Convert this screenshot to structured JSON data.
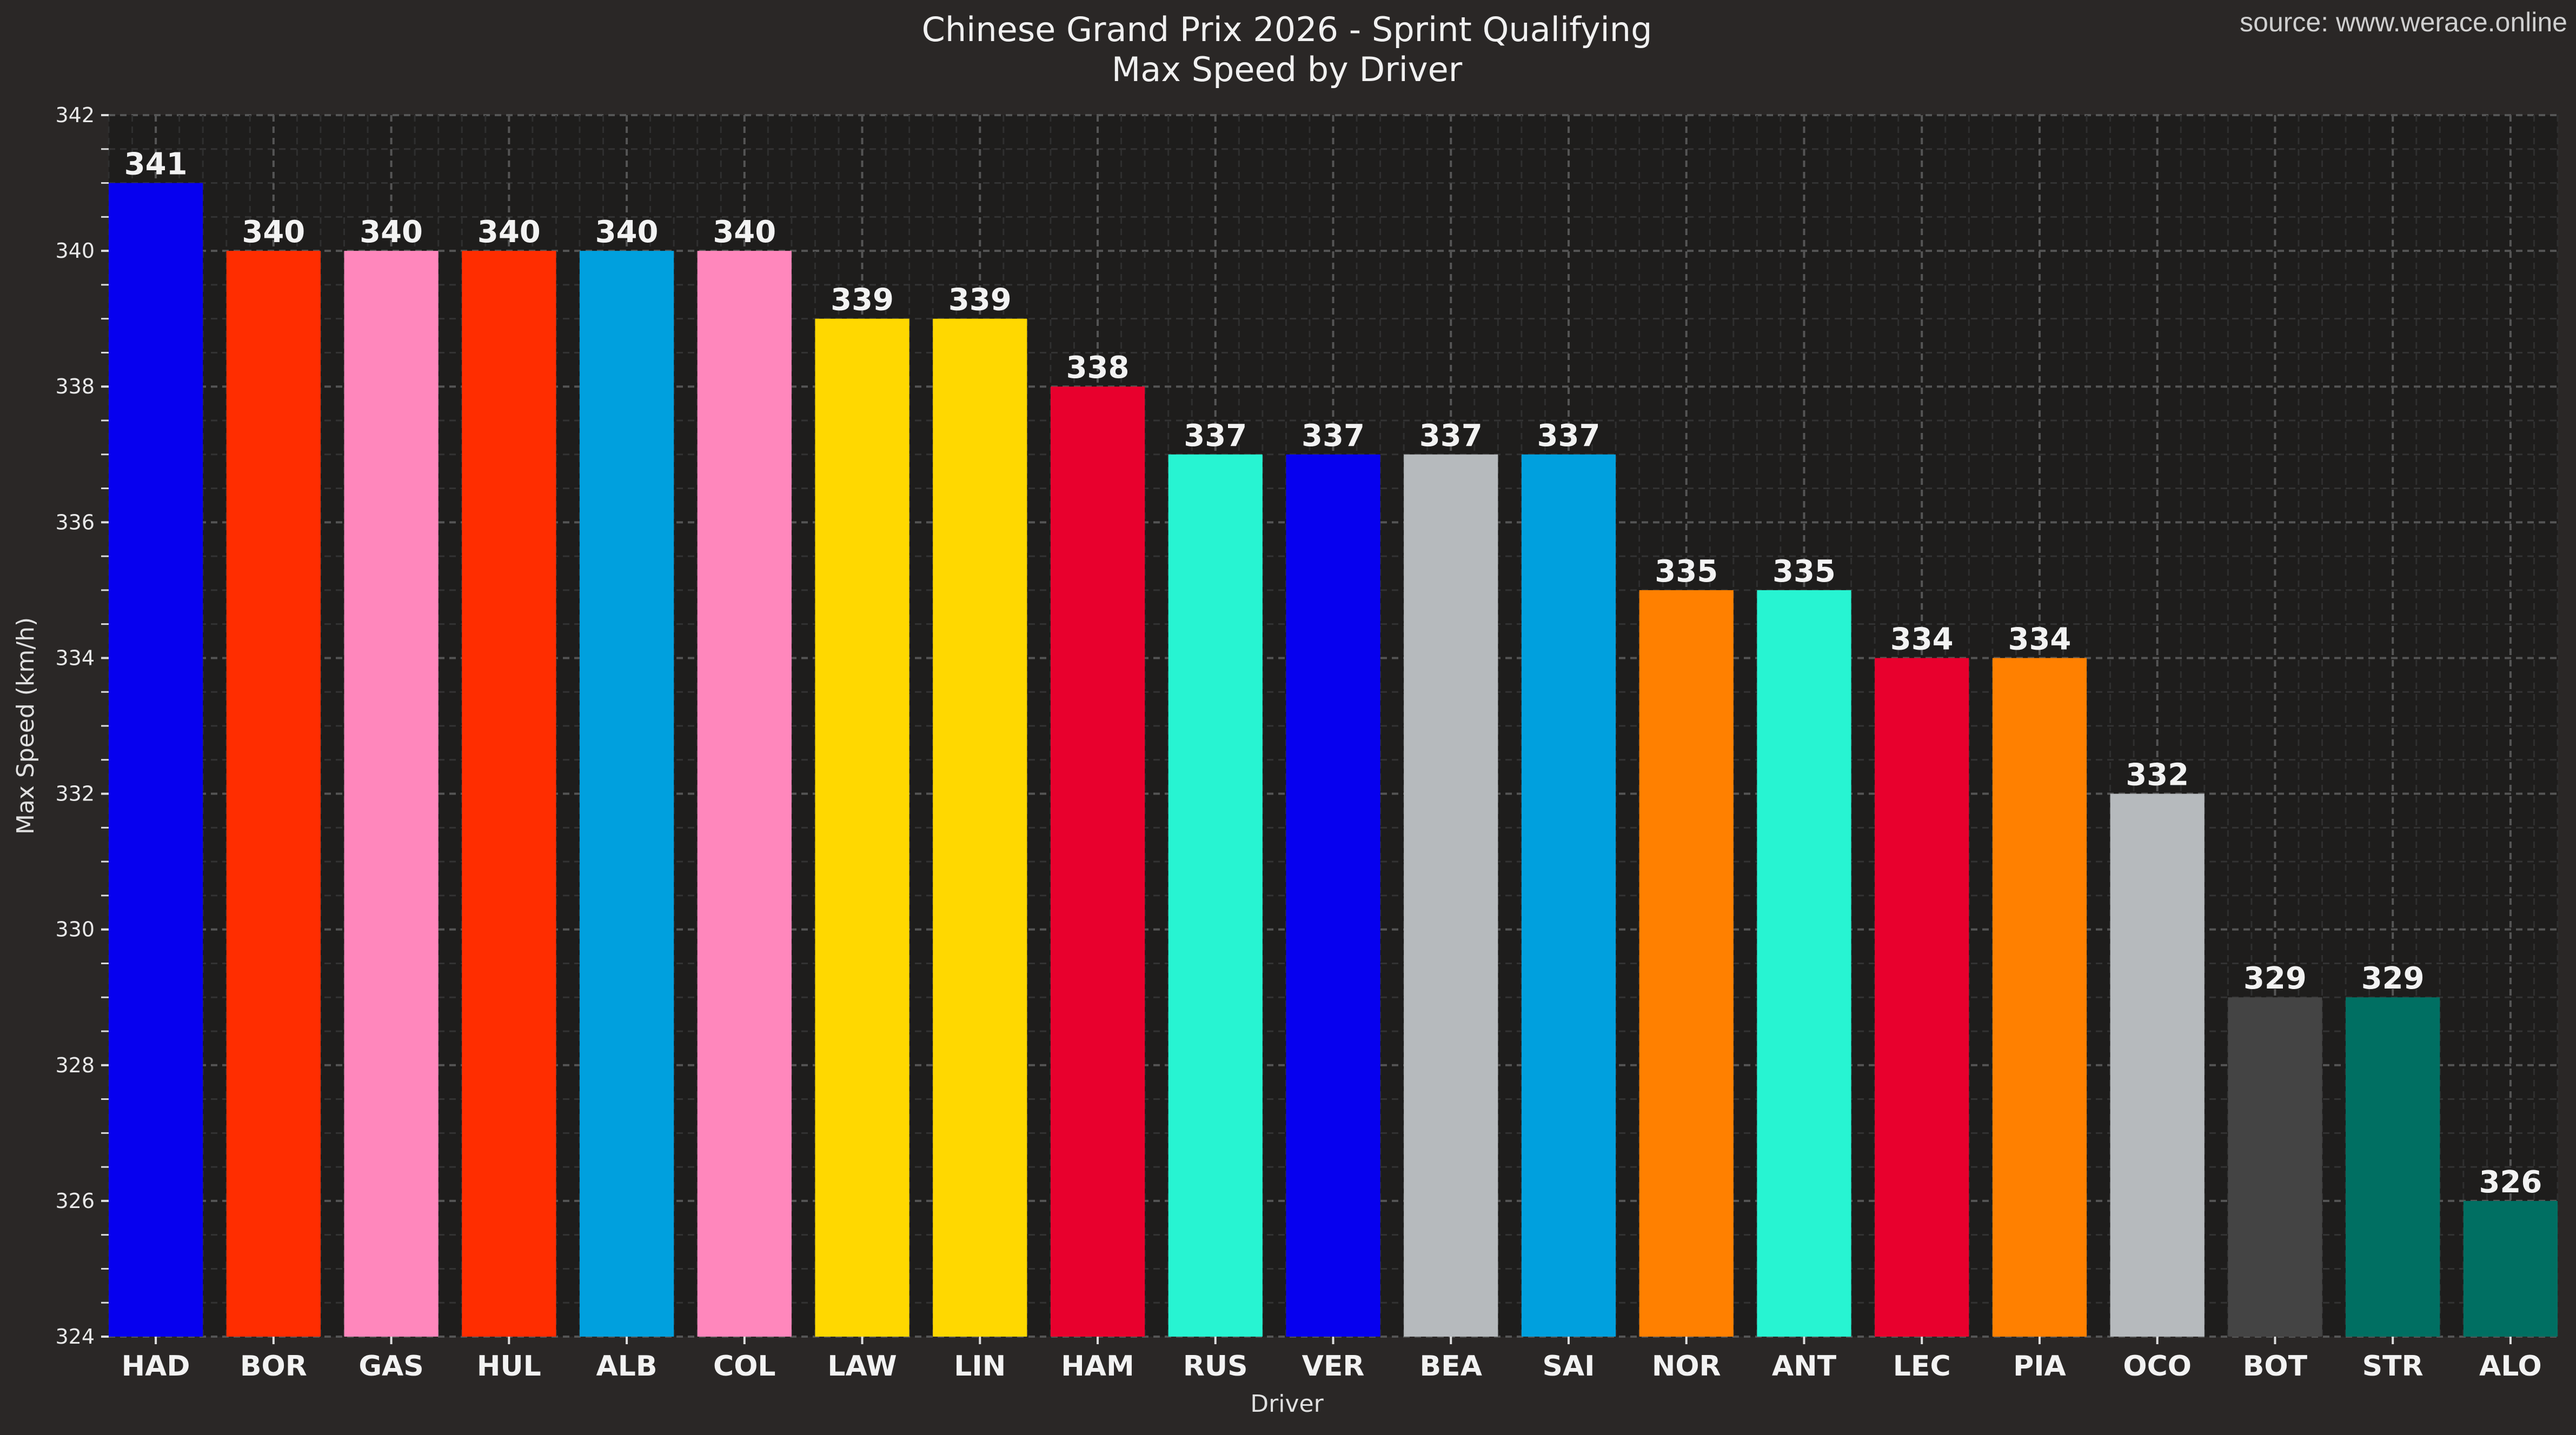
{
  "chart_data": {
    "type": "bar",
    "title": "Chinese Grand Prix 2026 - Sprint Qualifying",
    "subtitle": "Max Speed by Driver",
    "source": "source: www.werace.online",
    "xlabel": "Driver",
    "ylabel": "Max Speed (km/h)",
    "ylim": [
      324,
      342
    ],
    "yticks": [
      324,
      326,
      328,
      330,
      332,
      334,
      336,
      338,
      340,
      342
    ],
    "grid": true,
    "categories": [
      "HAD",
      "BOR",
      "GAS",
      "HUL",
      "ALB",
      "COL",
      "LAW",
      "LIN",
      "HAM",
      "RUS",
      "VER",
      "BEA",
      "SAI",
      "NOR",
      "ANT",
      "LEC",
      "PIA",
      "OCO",
      "BOT",
      "STR",
      "ALO"
    ],
    "values": [
      341,
      340,
      340,
      340,
      340,
      340,
      339,
      339,
      338,
      337,
      337,
      337,
      337,
      335,
      335,
      334,
      334,
      332,
      329,
      329,
      326
    ],
    "colors": [
      "#0600ef",
      "#ff2d00",
      "#ff87bc",
      "#ff2d00",
      "#00a0de",
      "#ff87bc",
      "#ffd800",
      "#ffd800",
      "#e8002d",
      "#27f4d2",
      "#0600ef",
      "#b6babd",
      "#00a0de",
      "#ff8000",
      "#27f4d2",
      "#e8002d",
      "#ff8000",
      "#b6babd",
      "#444444",
      "#006f62",
      "#006f62"
    ]
  }
}
